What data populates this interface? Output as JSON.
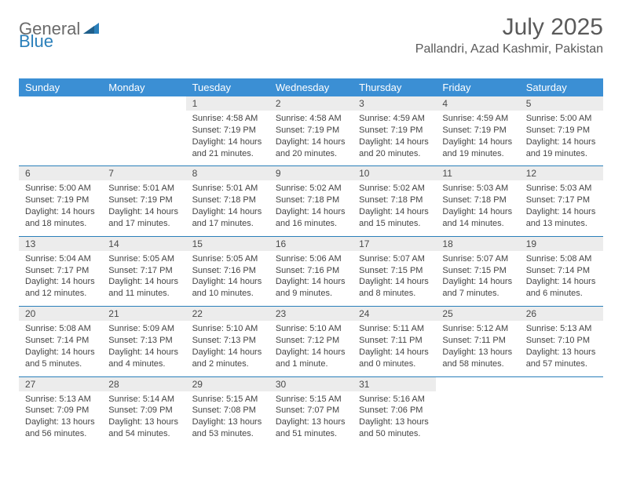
{
  "brand": {
    "part1": "General",
    "part2": "Blue"
  },
  "title": "July 2025",
  "location": "Pallandri, Azad Kashmir, Pakistan",
  "colors": {
    "header_bg": "#3b8fd4",
    "header_text": "#ffffff",
    "daynum_bg": "#ececec",
    "rule": "#2a7fba",
    "text": "#444444",
    "title_text": "#5a5a5a",
    "logo_gray": "#6a6a6a",
    "logo_blue": "#2a7fba"
  },
  "typography": {
    "title_fontsize": 30,
    "location_fontsize": 16,
    "dow_fontsize": 13,
    "daynum_fontsize": 12,
    "detail_fontsize": 11
  },
  "daysOfWeek": [
    "Sunday",
    "Monday",
    "Tuesday",
    "Wednesday",
    "Thursday",
    "Friday",
    "Saturday"
  ],
  "weeks": [
    [
      null,
      null,
      {
        "n": "1",
        "sr": "Sunrise: 4:58 AM",
        "ss": "Sunset: 7:19 PM",
        "d1": "Daylight: 14 hours",
        "d2": "and 21 minutes."
      },
      {
        "n": "2",
        "sr": "Sunrise: 4:58 AM",
        "ss": "Sunset: 7:19 PM",
        "d1": "Daylight: 14 hours",
        "d2": "and 20 minutes."
      },
      {
        "n": "3",
        "sr": "Sunrise: 4:59 AM",
        "ss": "Sunset: 7:19 PM",
        "d1": "Daylight: 14 hours",
        "d2": "and 20 minutes."
      },
      {
        "n": "4",
        "sr": "Sunrise: 4:59 AM",
        "ss": "Sunset: 7:19 PM",
        "d1": "Daylight: 14 hours",
        "d2": "and 19 minutes."
      },
      {
        "n": "5",
        "sr": "Sunrise: 5:00 AM",
        "ss": "Sunset: 7:19 PM",
        "d1": "Daylight: 14 hours",
        "d2": "and 19 minutes."
      }
    ],
    [
      {
        "n": "6",
        "sr": "Sunrise: 5:00 AM",
        "ss": "Sunset: 7:19 PM",
        "d1": "Daylight: 14 hours",
        "d2": "and 18 minutes."
      },
      {
        "n": "7",
        "sr": "Sunrise: 5:01 AM",
        "ss": "Sunset: 7:19 PM",
        "d1": "Daylight: 14 hours",
        "d2": "and 17 minutes."
      },
      {
        "n": "8",
        "sr": "Sunrise: 5:01 AM",
        "ss": "Sunset: 7:18 PM",
        "d1": "Daylight: 14 hours",
        "d2": "and 17 minutes."
      },
      {
        "n": "9",
        "sr": "Sunrise: 5:02 AM",
        "ss": "Sunset: 7:18 PM",
        "d1": "Daylight: 14 hours",
        "d2": "and 16 minutes."
      },
      {
        "n": "10",
        "sr": "Sunrise: 5:02 AM",
        "ss": "Sunset: 7:18 PM",
        "d1": "Daylight: 14 hours",
        "d2": "and 15 minutes."
      },
      {
        "n": "11",
        "sr": "Sunrise: 5:03 AM",
        "ss": "Sunset: 7:18 PM",
        "d1": "Daylight: 14 hours",
        "d2": "and 14 minutes."
      },
      {
        "n": "12",
        "sr": "Sunrise: 5:03 AM",
        "ss": "Sunset: 7:17 PM",
        "d1": "Daylight: 14 hours",
        "d2": "and 13 minutes."
      }
    ],
    [
      {
        "n": "13",
        "sr": "Sunrise: 5:04 AM",
        "ss": "Sunset: 7:17 PM",
        "d1": "Daylight: 14 hours",
        "d2": "and 12 minutes."
      },
      {
        "n": "14",
        "sr": "Sunrise: 5:05 AM",
        "ss": "Sunset: 7:17 PM",
        "d1": "Daylight: 14 hours",
        "d2": "and 11 minutes."
      },
      {
        "n": "15",
        "sr": "Sunrise: 5:05 AM",
        "ss": "Sunset: 7:16 PM",
        "d1": "Daylight: 14 hours",
        "d2": "and 10 minutes."
      },
      {
        "n": "16",
        "sr": "Sunrise: 5:06 AM",
        "ss": "Sunset: 7:16 PM",
        "d1": "Daylight: 14 hours",
        "d2": "and 9 minutes."
      },
      {
        "n": "17",
        "sr": "Sunrise: 5:07 AM",
        "ss": "Sunset: 7:15 PM",
        "d1": "Daylight: 14 hours",
        "d2": "and 8 minutes."
      },
      {
        "n": "18",
        "sr": "Sunrise: 5:07 AM",
        "ss": "Sunset: 7:15 PM",
        "d1": "Daylight: 14 hours",
        "d2": "and 7 minutes."
      },
      {
        "n": "19",
        "sr": "Sunrise: 5:08 AM",
        "ss": "Sunset: 7:14 PM",
        "d1": "Daylight: 14 hours",
        "d2": "and 6 minutes."
      }
    ],
    [
      {
        "n": "20",
        "sr": "Sunrise: 5:08 AM",
        "ss": "Sunset: 7:14 PM",
        "d1": "Daylight: 14 hours",
        "d2": "and 5 minutes."
      },
      {
        "n": "21",
        "sr": "Sunrise: 5:09 AM",
        "ss": "Sunset: 7:13 PM",
        "d1": "Daylight: 14 hours",
        "d2": "and 4 minutes."
      },
      {
        "n": "22",
        "sr": "Sunrise: 5:10 AM",
        "ss": "Sunset: 7:13 PM",
        "d1": "Daylight: 14 hours",
        "d2": "and 2 minutes."
      },
      {
        "n": "23",
        "sr": "Sunrise: 5:10 AM",
        "ss": "Sunset: 7:12 PM",
        "d1": "Daylight: 14 hours",
        "d2": "and 1 minute."
      },
      {
        "n": "24",
        "sr": "Sunrise: 5:11 AM",
        "ss": "Sunset: 7:11 PM",
        "d1": "Daylight: 14 hours",
        "d2": "and 0 minutes."
      },
      {
        "n": "25",
        "sr": "Sunrise: 5:12 AM",
        "ss": "Sunset: 7:11 PM",
        "d1": "Daylight: 13 hours",
        "d2": "and 58 minutes."
      },
      {
        "n": "26",
        "sr": "Sunrise: 5:13 AM",
        "ss": "Sunset: 7:10 PM",
        "d1": "Daylight: 13 hours",
        "d2": "and 57 minutes."
      }
    ],
    [
      {
        "n": "27",
        "sr": "Sunrise: 5:13 AM",
        "ss": "Sunset: 7:09 PM",
        "d1": "Daylight: 13 hours",
        "d2": "and 56 minutes."
      },
      {
        "n": "28",
        "sr": "Sunrise: 5:14 AM",
        "ss": "Sunset: 7:09 PM",
        "d1": "Daylight: 13 hours",
        "d2": "and 54 minutes."
      },
      {
        "n": "29",
        "sr": "Sunrise: 5:15 AM",
        "ss": "Sunset: 7:08 PM",
        "d1": "Daylight: 13 hours",
        "d2": "and 53 minutes."
      },
      {
        "n": "30",
        "sr": "Sunrise: 5:15 AM",
        "ss": "Sunset: 7:07 PM",
        "d1": "Daylight: 13 hours",
        "d2": "and 51 minutes."
      },
      {
        "n": "31",
        "sr": "Sunrise: 5:16 AM",
        "ss": "Sunset: 7:06 PM",
        "d1": "Daylight: 13 hours",
        "d2": "and 50 minutes."
      },
      null,
      null
    ]
  ]
}
